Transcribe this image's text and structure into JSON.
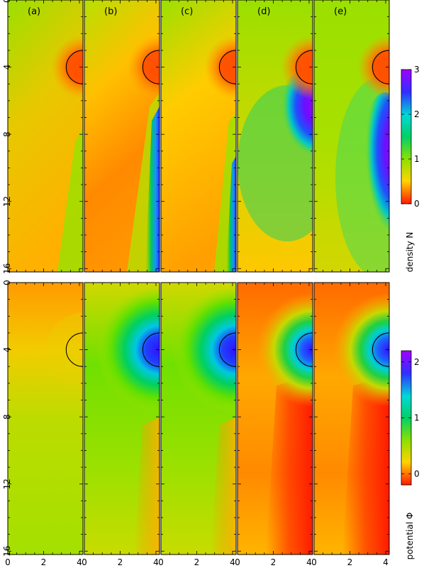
{
  "chart_data": [
    {
      "type": "heatmap",
      "row": "top",
      "panels": [
        "(a)",
        "(b)",
        "(c)",
        "(d)",
        "(e)"
      ],
      "x_ticks": [
        "0",
        "2",
        "4"
      ],
      "y_ticks": [
        "0",
        "4",
        "8",
        "12",
        "16"
      ],
      "xlim": [
        0,
        4.2
      ],
      "ylim": [
        0,
        16.2
      ],
      "obstacle": {
        "center_x": 4.2,
        "center_y": 4,
        "radius": 1
      },
      "colorbar": {
        "label": "density N",
        "ticks": [
          "0",
          "1",
          "2",
          "3"
        ],
        "range": [
          0,
          3
        ],
        "colors": [
          "#ff1a00",
          "#ffd400",
          "#8ee000",
          "#00d066",
          "#00d8d8",
          "#3030ff",
          "#a000ff"
        ]
      }
    },
    {
      "type": "heatmap",
      "row": "bottom",
      "panels": [
        "(a)",
        "(b)",
        "(c)",
        "(d)",
        "(e)"
      ],
      "x_ticks": [
        "0",
        "2",
        "4"
      ],
      "y_ticks": [
        "0",
        "4",
        "8",
        "12",
        "16"
      ],
      "xlim": [
        0,
        4.2
      ],
      "ylim": [
        0,
        16.2
      ],
      "obstacle": {
        "center_x": 4.2,
        "center_y": 4,
        "radius": 1
      },
      "colorbar": {
        "label": "potential Φ",
        "ticks": [
          "0",
          "1",
          "2"
        ],
        "range": [
          -0.2,
          2.2
        ],
        "colors": [
          "#ff1a00",
          "#ffd400",
          "#8ee000",
          "#00d066",
          "#00d8d8",
          "#3030ff",
          "#a000ff"
        ]
      }
    }
  ]
}
